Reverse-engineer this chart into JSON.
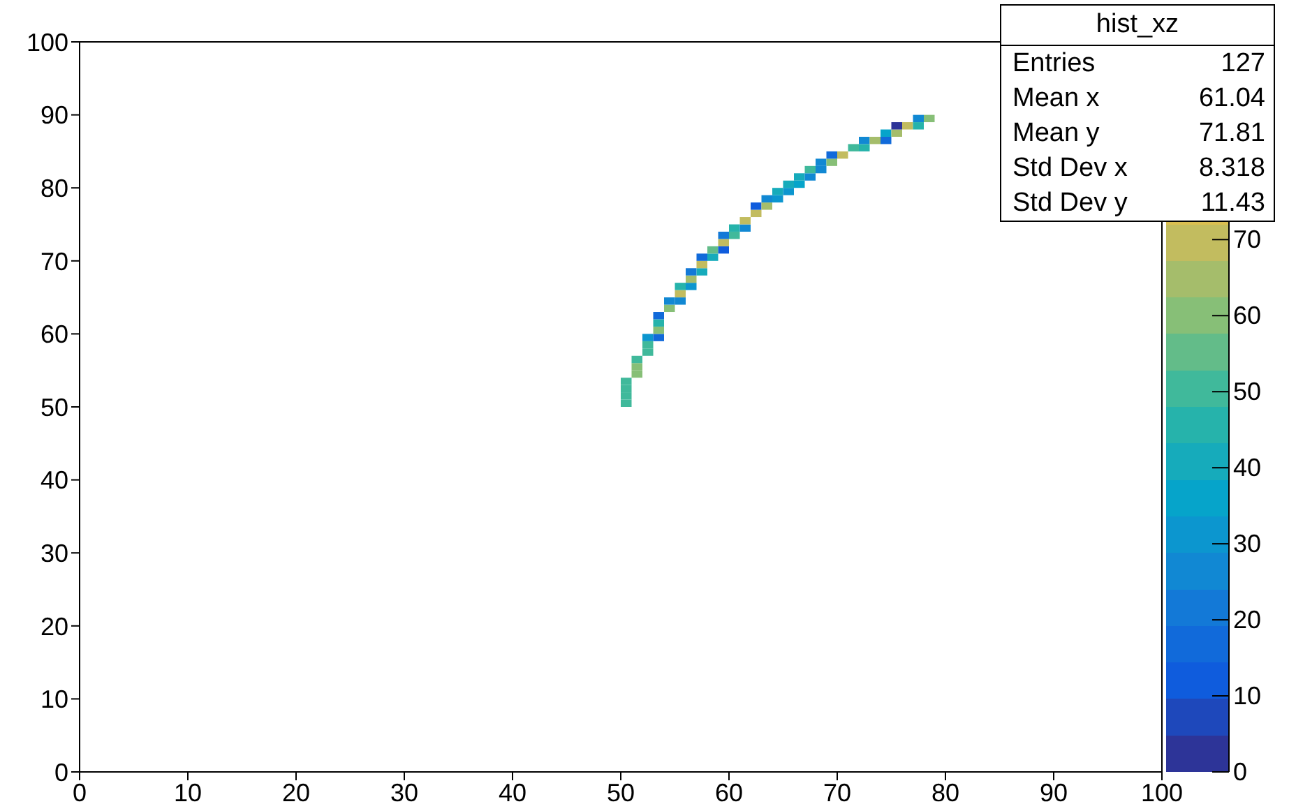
{
  "chart_data": {
    "type": "scatter",
    "marker": "square",
    "x": [
      50.5,
      50.5,
      50.5,
      50.5,
      51.5,
      51.5,
      51.5,
      52.5,
      52.5,
      52.5,
      53.5,
      53.5,
      53.5,
      53.5,
      54.5,
      54.5,
      55.5,
      55.5,
      55.5,
      56.5,
      56.5,
      56.5,
      57.5,
      57.5,
      57.5,
      58.5,
      58.5,
      59.5,
      59.5,
      59.5,
      60.5,
      60.5,
      61.5,
      61.5,
      62.5,
      62.5,
      63.5,
      63.5,
      64.5,
      64.5,
      65.5,
      65.5,
      66.5,
      66.5,
      67.5,
      67.5,
      68.5,
      68.5,
      69.5,
      69.5,
      70.5,
      71.5,
      72.5,
      72.5,
      73.5,
      74.5,
      74.5,
      75.5,
      75.5,
      76.5,
      77.5,
      77.5,
      78.5
    ],
    "values": [
      50.5,
      51.5,
      52.5,
      53.5,
      54.5,
      55.5,
      56.5,
      57.5,
      58.5,
      59.5,
      59.5,
      60.5,
      61.5,
      62.5,
      63.5,
      64.5,
      64.5,
      65.5,
      66.5,
      66.5,
      67.5,
      68.5,
      68.5,
      69.5,
      70.5,
      70.5,
      71.5,
      71.5,
      72.5,
      73.5,
      73.5,
      74.5,
      74.5,
      75.5,
      76.5,
      77.5,
      77.5,
      78.5,
      78.5,
      79.5,
      79.5,
      80.5,
      80.5,
      81.5,
      81.5,
      82.5,
      82.5,
      83.5,
      83.5,
      84.5,
      84.5,
      85.5,
      85.5,
      86.5,
      86.5,
      86.5,
      87.5,
      87.5,
      88.5,
      88.5,
      88.5,
      89.5,
      89.5
    ],
    "cvalues": [
      50,
      50,
      50,
      50,
      58,
      58,
      50,
      50,
      50,
      30,
      15,
      62,
      45,
      15,
      58,
      25,
      25,
      70,
      45,
      30,
      65,
      20,
      40,
      70,
      18,
      42,
      55,
      12,
      70,
      20,
      52,
      45,
      28,
      70,
      70,
      12,
      65,
      28,
      32,
      42,
      30,
      40,
      38,
      42,
      28,
      50,
      28,
      28,
      62,
      15,
      70,
      52,
      45,
      25,
      65,
      15,
      38,
      65,
      3,
      70,
      45,
      25,
      60
    ],
    "xlim": [
      0,
      100
    ],
    "xticks": [
      0,
      10,
      20,
      30,
      40,
      50,
      60,
      70,
      80,
      90,
      100
    ],
    "ylim": [
      0,
      100
    ],
    "yticks": [
      0,
      10,
      20,
      30,
      40,
      50,
      60,
      70,
      80,
      90,
      100
    ],
    "clim": [
      0,
      96
    ],
    "cticks": [
      0,
      10,
      20,
      30,
      40,
      50,
      60,
      70
    ],
    "annotations": [
      "hist_xz",
      "Entries",
      "127",
      "Mean x",
      "61.04",
      "Mean y",
      "71.81",
      "Std Dev x",
      "8.318",
      "Std Dev y",
      "11.43"
    ]
  }
}
